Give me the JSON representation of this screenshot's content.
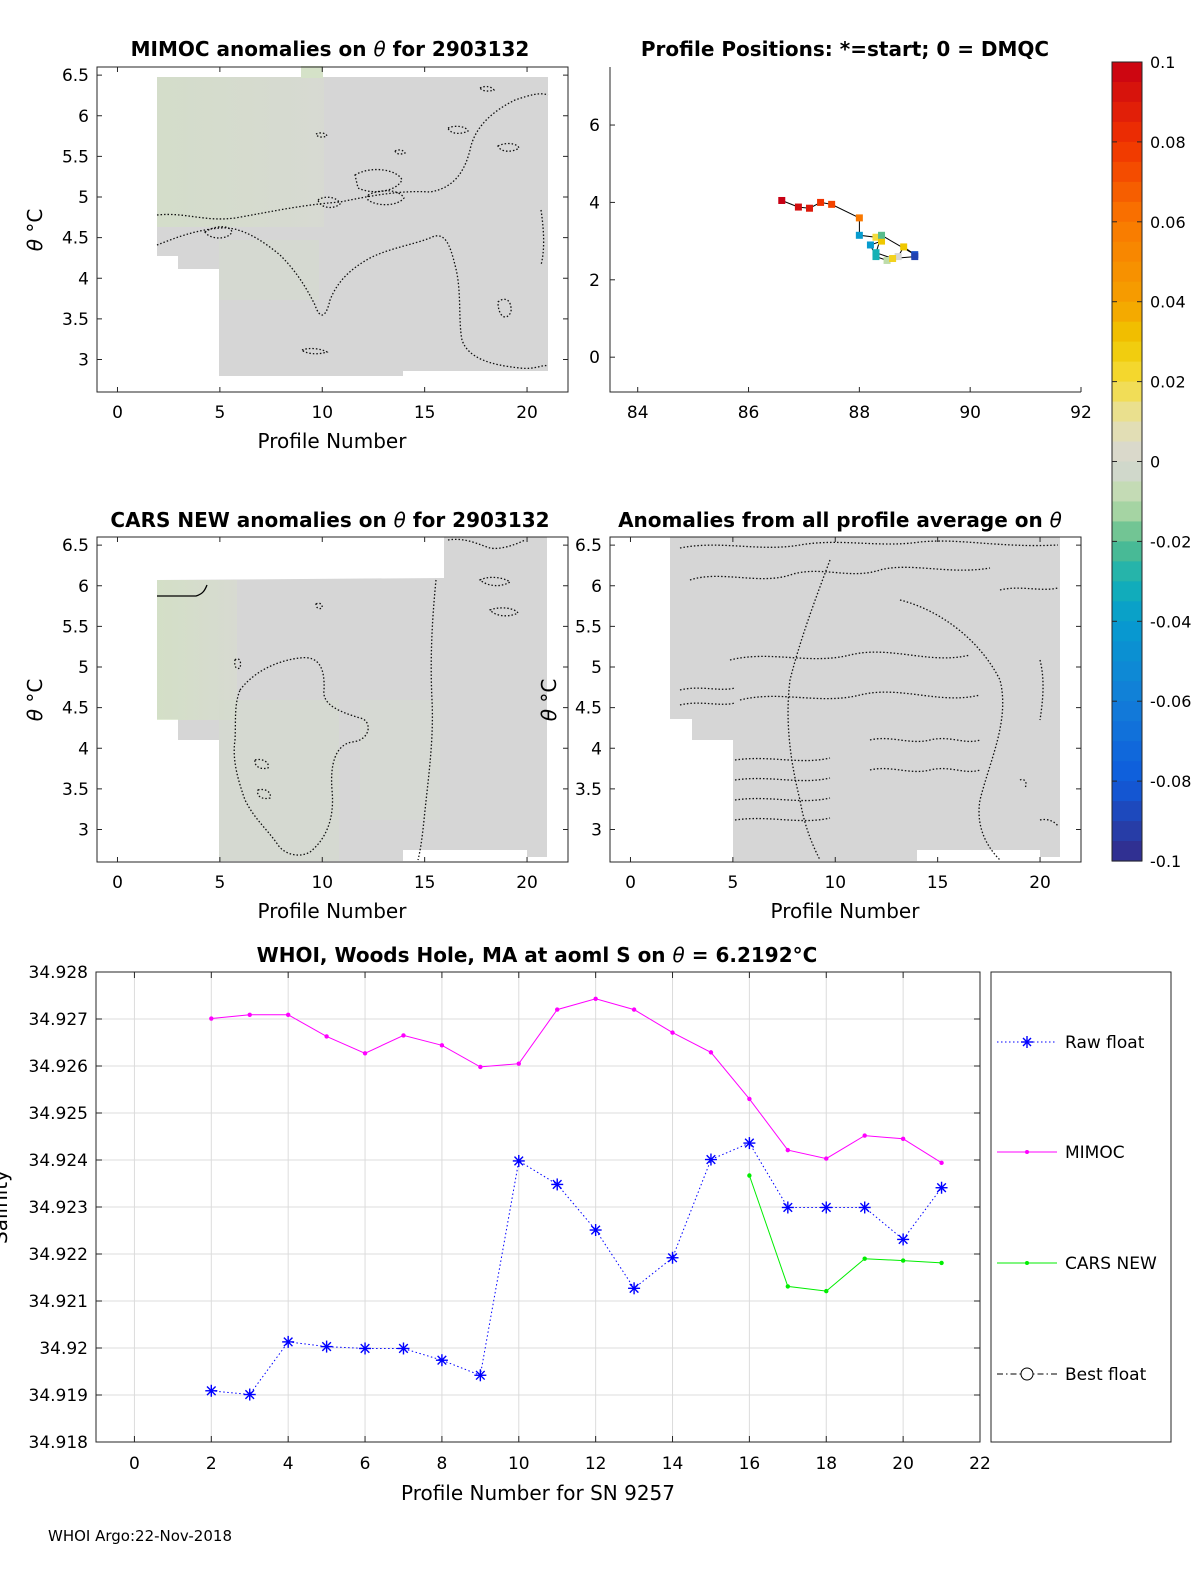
{
  "chart_data": [
    {
      "type": "heatmap",
      "title_prefix": "MIMOC anomalies on",
      "title_symbol": "θ",
      "title_suffix": " for 2903132",
      "xlabel": "Profile Number",
      "ylabel_symbol": "θ",
      "ylabel_unit": "°C",
      "xlim": [
        -1,
        22
      ],
      "ylim": [
        2.6,
        6.6
      ],
      "xticks": [
        0,
        5,
        10,
        15,
        20
      ],
      "yticks": [
        3,
        3.5,
        4,
        4.5,
        5,
        5.5,
        6,
        6.5
      ]
    },
    {
      "type": "scatter",
      "title": "Profile Positions: *=start; 0 = DMQC",
      "xlim": [
        83.5,
        92
      ],
      "ylim": [
        -0.9,
        7.5
      ],
      "xticks": [
        84,
        86,
        88,
        90,
        92
      ],
      "yticks": [
        0,
        2,
        4,
        6
      ],
      "lon": [
        86.6,
        86.9,
        87.1,
        87.3,
        87.5,
        88.0,
        88.0,
        88.3,
        88.4,
        88.2,
        88.3,
        88.5,
        88.7,
        88.8,
        89.0,
        88.4,
        88.3,
        88.6,
        89.0
      ],
      "lat": [
        4.05,
        3.88,
        3.85,
        4.0,
        3.95,
        3.6,
        3.15,
        3.1,
        3.0,
        2.9,
        2.6,
        2.5,
        2.6,
        2.85,
        2.65,
        3.15,
        2.7,
        2.55,
        2.6
      ],
      "anomaly_color_values": [
        0.1,
        0.095,
        0.09,
        0.08,
        0.075,
        0.06,
        -0.04,
        0.02,
        0.03,
        -0.04,
        -0.03,
        -0.01,
        0.0,
        0.03,
        -0.085,
        -0.02,
        -0.03,
        0.025,
        -0.09
      ]
    },
    {
      "type": "heatmap",
      "title_prefix": "CARS NEW anomalies on",
      "title_symbol": "θ",
      "title_suffix": " for 2903132",
      "xlabel": "Profile Number",
      "ylabel_symbol": "θ",
      "ylabel_unit": "°C",
      "xlim": [
        -1,
        22
      ],
      "ylim": [
        2.6,
        6.6
      ],
      "xticks": [
        0,
        5,
        10,
        15,
        20
      ],
      "yticks": [
        3,
        3.5,
        4,
        4.5,
        5,
        5.5,
        6,
        6.5
      ]
    },
    {
      "type": "heatmap",
      "title_prefix": "Anomalies from all profile average on",
      "title_symbol": "θ",
      "title_suffix": "",
      "xlabel": "Profile Number",
      "ylabel_symbol": "θ",
      "ylabel_unit": "°C",
      "xlim": [
        -1,
        22
      ],
      "ylim": [
        2.6,
        6.6
      ],
      "xticks": [
        0,
        5,
        10,
        15,
        20
      ],
      "yticks": [
        3,
        3.5,
        4,
        4.5,
        5,
        5.5,
        6,
        6.5
      ]
    },
    {
      "type": "line",
      "title_main": "WHOI, Woods Hole, MA at aoml S on ",
      "title_symbol": "θ",
      "title_value": " = 6.2192",
      "title_unit": "°C",
      "xlabel": "Profile Number for SN 9257",
      "ylabel": "Salinity",
      "xlim": [
        -1,
        22
      ],
      "ylim": [
        34.918,
        34.928
      ],
      "xticks": [
        0,
        2,
        4,
        6,
        8,
        10,
        12,
        14,
        16,
        18,
        20,
        22
      ],
      "yticks": [
        34.918,
        34.919,
        34.92,
        34.921,
        34.922,
        34.923,
        34.924,
        34.925,
        34.926,
        34.927,
        34.928
      ],
      "ytick_labels": [
        "34.918",
        "34.919",
        "34.92",
        "34.921",
        "34.922",
        "34.923",
        "34.924",
        "34.925",
        "34.926",
        "34.927",
        "34.928"
      ],
      "series": [
        {
          "name": "Raw float",
          "color": "#0000ff",
          "style": "dotted-star",
          "x": [
            2,
            3,
            4,
            5,
            6,
            7,
            8,
            9,
            10,
            11,
            12,
            13,
            14,
            15,
            16,
            17,
            18,
            19,
            20,
            21
          ],
          "values": [
            34.91909,
            34.91901,
            34.92013,
            34.92003,
            34.91999,
            34.91999,
            34.91974,
            34.91942,
            34.92398,
            34.92348,
            34.92251,
            34.92127,
            34.92192,
            34.92401,
            34.92436,
            34.92299,
            34.92299,
            34.92299,
            34.92231,
            34.92341
          ]
        },
        {
          "name": "MIMOC",
          "color": "#ff00ff",
          "style": "solid-dot",
          "x": [
            2,
            3,
            4,
            5,
            6,
            7,
            8,
            9,
            10,
            11,
            12,
            13,
            14,
            15,
            16,
            17,
            18,
            19,
            20,
            21
          ],
          "values": [
            34.92701,
            34.92709,
            34.92709,
            34.92663,
            34.92627,
            34.92665,
            34.92644,
            34.92598,
            34.92605,
            34.9272,
            34.92743,
            34.9272,
            34.92671,
            34.92629,
            34.9253,
            34.92421,
            34.92403,
            34.92452,
            34.92445,
            34.92394
          ]
        },
        {
          "name": "CARS NEW",
          "color": "#00ee00",
          "style": "solid-dot",
          "x": [
            16,
            17,
            18,
            19,
            20,
            21
          ],
          "values": [
            34.92367,
            34.92131,
            34.92121,
            34.9219,
            34.92186,
            34.92181
          ]
        },
        {
          "name": "Best float",
          "color": "#000000",
          "style": "dashdot-circle",
          "x": [],
          "values": []
        }
      ]
    }
  ],
  "colorbar": {
    "min": -0.1,
    "max": 0.1,
    "tick_labels": [
      "0.1",
      "0.08",
      "0.06",
      "0.04",
      "0.02",
      "0",
      "-0.02",
      "-0.04",
      "-0.06",
      "-0.08",
      "-0.1"
    ]
  },
  "footer": "WHOI Argo:22-Nov-2018"
}
